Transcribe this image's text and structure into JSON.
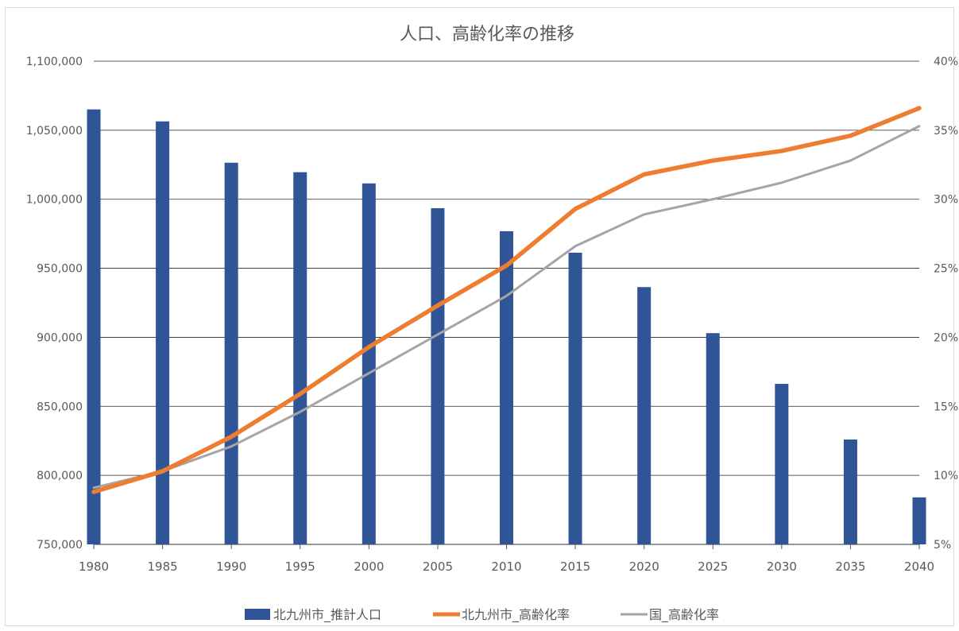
{
  "chart_data": {
    "type": "bar",
    "title": "人口、高齢化率の推移",
    "categories": [
      "1980",
      "1985",
      "1990",
      "1995",
      "2000",
      "2005",
      "2010",
      "2015",
      "2020",
      "2025",
      "2030",
      "2035",
      "2040"
    ],
    "series": [
      {
        "name": "北九州市_推計人口",
        "type": "bar",
        "axis": "left",
        "color": "#2f5597",
        "values": [
          1065078,
          1056402,
          1026455,
          1019598,
          1011471,
          993525,
          976846,
          961286,
          936375,
          903006,
          866289,
          825958,
          784036
        ]
      },
      {
        "name": "北九州市_高齢化率",
        "type": "line",
        "axis": "right",
        "color": "#ed7d31",
        "values": [
          8.8,
          10.3,
          12.8,
          15.9,
          19.3,
          22.3,
          25.2,
          29.3,
          31.8,
          32.8,
          33.5,
          34.6,
          36.6
        ]
      },
      {
        "name": "国_高齢化率",
        "type": "line",
        "axis": "right",
        "color": "#a5a5a5",
        "values": [
          9.1,
          10.3,
          12.1,
          14.6,
          17.4,
          20.2,
          23.0,
          26.6,
          28.9,
          30.0,
          31.2,
          32.8,
          35.3
        ]
      }
    ],
    "y_left": {
      "min": 750000,
      "max": 1100000,
      "step": 50000,
      "ticks": [
        "750,000",
        "800,000",
        "850,000",
        "900,000",
        "950,000",
        "1,000,000",
        "1,050,000",
        "1,100,000"
      ]
    },
    "y_right": {
      "min": 5,
      "max": 40,
      "step": 5,
      "ticks": [
        "5%",
        "10%",
        "15%",
        "20%",
        "25%",
        "30%",
        "35%",
        "40%"
      ]
    },
    "grid": true,
    "legend_position": "bottom"
  }
}
